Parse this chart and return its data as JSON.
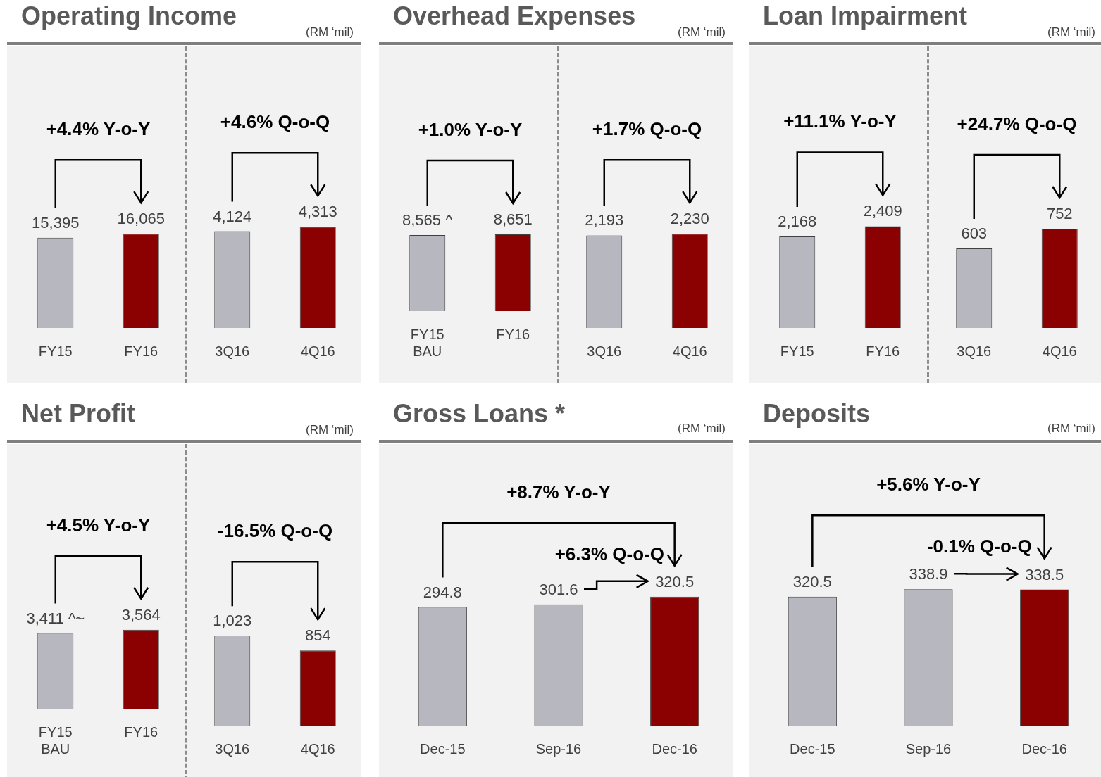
{
  "chart_data": [
    {
      "type": "bar",
      "title": "Operating Income",
      "categories": [
        "FY15",
        "FY16"
      ],
      "values": [
        15395,
        16065
      ],
      "colors": [
        "#b7b7bf",
        "#8b0000"
      ],
      "value_labels": [
        "15,395",
        "16,065"
      ],
      "annotations": [
        "+4.4% Y-o-Y"
      ]
    },
    {
      "type": "bar",
      "subtitle": "(RM ‘mil)",
      "categories": [
        "3Q16",
        "4Q16"
      ],
      "values": [
        4124,
        4313
      ],
      "colors": [
        "#b7b7bf",
        "#8b0000"
      ],
      "value_labels": [
        "4,124",
        "4,313"
      ],
      "annotations": [
        "+4.6% Q-o-Q"
      ]
    },
    {
      "type": "bar",
      "title": "Overhead Expenses",
      "categories": [
        "FY15\nBAU",
        "FY16"
      ],
      "values": [
        8565,
        8651
      ],
      "colors": [
        "#b7b7bf",
        "#8b0000"
      ],
      "value_labels": [
        "8,565 ^",
        "8,651"
      ],
      "annotations": [
        "+1.0% Y-o-Y"
      ]
    },
    {
      "type": "bar",
      "subtitle": "(RM ‘mil)",
      "categories": [
        "3Q16",
        "4Q16"
      ],
      "values": [
        2193,
        2230
      ],
      "colors": [
        "#b7b7bf",
        "#8b0000"
      ],
      "value_labels": [
        "2,193",
        "2,230"
      ],
      "annotations": [
        "+1.7% Q-o-Q"
      ]
    },
    {
      "type": "bar",
      "title": "Loan Impairment",
      "categories": [
        "FY15",
        "FY16"
      ],
      "values": [
        2168,
        2409
      ],
      "colors": [
        "#b7b7bf",
        "#8b0000"
      ],
      "value_labels": [
        "2,168",
        "2,409"
      ],
      "annotations": [
        "+11.1% Y-o-Y"
      ]
    },
    {
      "type": "bar",
      "subtitle": "(RM ‘mil)",
      "categories": [
        "3Q16",
        "4Q16"
      ],
      "values": [
        603,
        752
      ],
      "colors": [
        "#b7b7bf",
        "#8b0000"
      ],
      "value_labels": [
        "603",
        "752"
      ],
      "annotations": [
        "+24.7% Q-o-Q"
      ]
    },
    {
      "type": "bar",
      "title": "Net Profit",
      "categories": [
        "FY15\nBAU",
        "FY16"
      ],
      "values": [
        3411,
        3564
      ],
      "colors": [
        "#b7b7bf",
        "#8b0000"
      ],
      "value_labels": [
        "3,411 ^~",
        "3,564"
      ],
      "annotations": [
        "+4.5% Y-o-Y"
      ]
    },
    {
      "type": "bar",
      "subtitle": "(RM ‘mil)",
      "categories": [
        "3Q16",
        "4Q16"
      ],
      "values": [
        1023,
        854
      ],
      "colors": [
        "#b7b7bf",
        "#8b0000"
      ],
      "value_labels": [
        "1,023",
        "854"
      ],
      "annotations": [
        "-16.5% Q-o-Q"
      ]
    },
    {
      "type": "bar",
      "title": "Gross Loans *",
      "subtitle": "(RM ‘mil)",
      "categories": [
        "Dec-15",
        "Sep-16",
        "Dec-16"
      ],
      "values": [
        294.8,
        301.6,
        320.5
      ],
      "colors": [
        "#b7b7bf",
        "#b7b7bf",
        "#8b0000"
      ],
      "value_labels": [
        "294.8",
        "301.6",
        "320.5"
      ],
      "annotations": [
        "+8.7% Y-o-Y",
        "+6.3% Q-o-Q"
      ]
    },
    {
      "type": "bar",
      "title": "Deposits",
      "subtitle": "(RM ‘mil)",
      "categories": [
        "Dec-15",
        "Sep-16",
        "Dec-16"
      ],
      "values": [
        320.5,
        338.9,
        338.5
      ],
      "colors": [
        "#b7b7bf",
        "#b7b7bf",
        "#8b0000"
      ],
      "value_labels": [
        "320.5",
        "338.9",
        "338.5"
      ],
      "annotations": [
        "+5.6% Y-o-Y",
        "-0.1% Q-o-Q"
      ]
    }
  ]
}
